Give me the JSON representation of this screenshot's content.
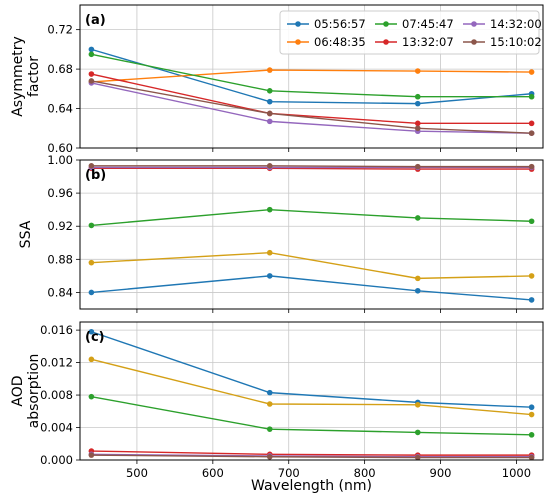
{
  "colors": {
    "05:56:57": "#1f77b4",
    "06:48:35": "#ff7f0e",
    "07:45:47": "#2ca02c",
    "13:32:07": "#d62728",
    "14:32:00": "#9467bd",
    "15:10:02": "#8c564b",
    "orange_ssa_aod": "#d4a017",
    "grid": "#c8c8c8"
  },
  "chart_data": [
    {
      "type": "line",
      "panel_label": "(a)",
      "ylabel": "Asymmetry factor",
      "xlabel": "",
      "ylim": [
        0.6,
        0.745
      ],
      "xlim": [
        425,
        1035
      ],
      "yticks": [
        "0.60",
        "0.64",
        "0.68",
        "0.72"
      ],
      "x": [
        440,
        675,
        870,
        1020
      ],
      "grid": true,
      "legend": {
        "position": "top-right",
        "columns": 3
      },
      "series": [
        {
          "name": "05:56:57",
          "values": [
            0.7,
            0.647,
            0.645,
            0.655
          ]
        },
        {
          "name": "06:48:35",
          "values": [
            0.667,
            0.679,
            0.678,
            0.677
          ]
        },
        {
          "name": "07:45:47",
          "values": [
            0.695,
            0.658,
            0.652,
            0.652
          ]
        },
        {
          "name": "13:32:07",
          "values": [
            0.675,
            0.635,
            0.625,
            0.625
          ]
        },
        {
          "name": "14:32:00",
          "values": [
            0.666,
            0.627,
            0.617,
            0.615
          ]
        },
        {
          "name": "15:10:02",
          "values": [
            0.668,
            0.635,
            0.62,
            0.615
          ]
        }
      ]
    },
    {
      "type": "line",
      "panel_label": "(b)",
      "ylabel": "SSA",
      "xlabel": "",
      "ylim": [
        0.82,
        1.0
      ],
      "xlim": [
        425,
        1035
      ],
      "yticks": [
        "0.84",
        "0.88",
        "0.92",
        "0.96",
        "1.00"
      ],
      "x": [
        440,
        675,
        870,
        1020
      ],
      "grid": true,
      "series": [
        {
          "name": "05:56:57",
          "values": [
            0.84,
            0.86,
            0.842,
            0.831
          ]
        },
        {
          "name": "06:48:35",
          "values": [
            0.876,
            0.888,
            0.857,
            0.86
          ]
        },
        {
          "name": "07:45:47",
          "values": [
            0.921,
            0.94,
            0.93,
            0.926
          ]
        },
        {
          "name": "13:32:07",
          "values": [
            0.99,
            0.99,
            0.989,
            0.989
          ]
        },
        {
          "name": "14:32:00",
          "values": [
            0.991,
            0.991,
            0.991,
            0.991
          ]
        },
        {
          "name": "15:10:02",
          "values": [
            0.993,
            0.993,
            0.992,
            0.992
          ]
        }
      ]
    },
    {
      "type": "line",
      "panel_label": "(c)",
      "ylabel": "AOD absorption",
      "xlabel": "Wavelength (nm)",
      "ylim": [
        0.0,
        0.017
      ],
      "xlim": [
        425,
        1035
      ],
      "yticks": [
        "0.000",
        "0.004",
        "0.008",
        "0.012",
        "0.016"
      ],
      "xticks": [
        "500",
        "600",
        "700",
        "800",
        "900",
        "1000"
      ],
      "x": [
        440,
        675,
        870,
        1020
      ],
      "grid": true,
      "series": [
        {
          "name": "05:56:57",
          "values": [
            0.0158,
            0.0083,
            0.0071,
            0.0065
          ]
        },
        {
          "name": "06:48:35",
          "values": [
            0.0124,
            0.0069,
            0.0068,
            0.0056
          ]
        },
        {
          "name": "07:45:47",
          "values": [
            0.0078,
            0.0038,
            0.0034,
            0.0031
          ]
        },
        {
          "name": "13:32:07",
          "values": [
            0.0011,
            0.0007,
            0.0006,
            0.0006
          ]
        },
        {
          "name": "14:32:00",
          "values": [
            0.0007,
            0.0005,
            0.0004,
            0.0004
          ]
        },
        {
          "name": "15:10:02",
          "values": [
            0.0006,
            0.0004,
            0.0003,
            0.0003
          ]
        }
      ]
    }
  ]
}
